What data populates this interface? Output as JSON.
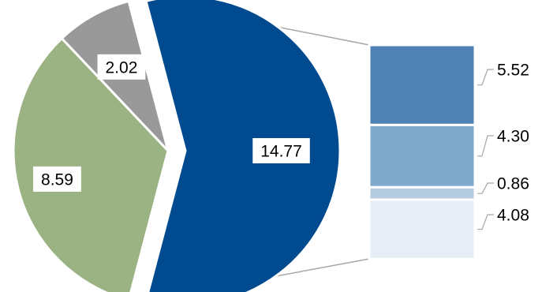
{
  "chart_data": {
    "type": "bar-of-pie",
    "title": "",
    "pie": {
      "values": [
        14.77,
        8.59,
        2.02
      ],
      "labels": [
        "14.77",
        "8.59",
        "2.02"
      ],
      "colors": [
        "#004a8f",
        "#9bb283",
        "#999999"
      ]
    },
    "breakdown": {
      "values": [
        5.52,
        4.3,
        0.86,
        4.08
      ],
      "labels": [
        "5.52",
        "4.30",
        "0.86",
        "4.08"
      ],
      "colors": [
        "#4f81b4",
        "#7fa8cb",
        "#b5cbe0",
        "#e6edf5"
      ]
    }
  }
}
